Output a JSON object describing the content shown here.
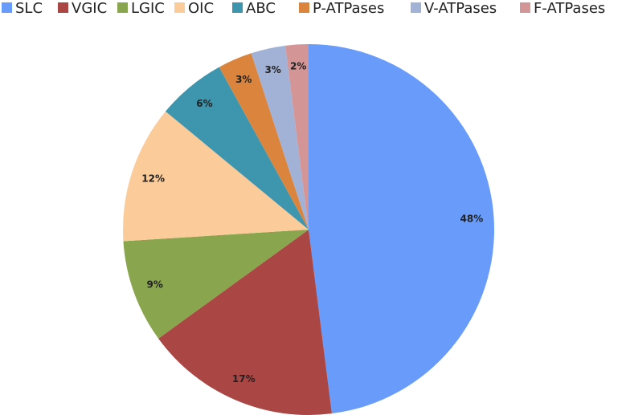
{
  "chart_data": {
    "type": "pie",
    "categories": [
      "SLC",
      "VGIC",
      "LGIC",
      "OIC",
      "ABC",
      "P-ATPases",
      "V-ATPases",
      "F-ATPases"
    ],
    "values": [
      48,
      17,
      9,
      12,
      6,
      3,
      3,
      2
    ],
    "value_labels": [
      "48%",
      "17%",
      "9%",
      "12%",
      "6%",
      "3%",
      "3%",
      "2%"
    ],
    "colors": [
      "#699cfa",
      "#aa4643",
      "#89a54e",
      "#fbcb9a",
      "#3d96ae",
      "#db843d",
      "#a2b2d6",
      "#d49597"
    ],
    "legend": "top"
  }
}
